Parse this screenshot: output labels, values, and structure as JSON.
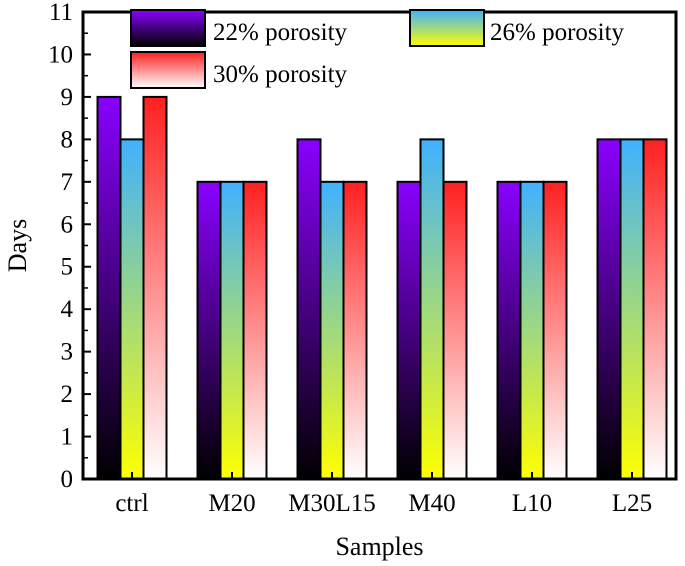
{
  "chart_data": {
    "type": "bar",
    "title": "",
    "xlabel": "Samples",
    "ylabel": "Days",
    "ylim": [
      0,
      11
    ],
    "yticks": [
      0,
      1,
      2,
      3,
      4,
      5,
      6,
      7,
      8,
      9,
      10,
      11
    ],
    "categories": [
      "ctrl",
      "M20",
      "M30L15",
      "M40",
      "L10",
      "L25"
    ],
    "series": [
      {
        "name": "22% porosity",
        "values": [
          9,
          7,
          8,
          7,
          7,
          8
        ],
        "gradient": [
          "#8a00ff",
          "#000000"
        ]
      },
      {
        "name": "26% porosity",
        "values": [
          8,
          7,
          7,
          8,
          7,
          8
        ],
        "gradient": [
          "#3fb1ff",
          "#ffff00"
        ]
      },
      {
        "name": "30% porosity",
        "values": [
          9,
          7,
          7,
          7,
          7,
          8
        ],
        "gradient": [
          "#ff2020",
          "#ffffff"
        ]
      }
    ],
    "legend_position": "top"
  }
}
